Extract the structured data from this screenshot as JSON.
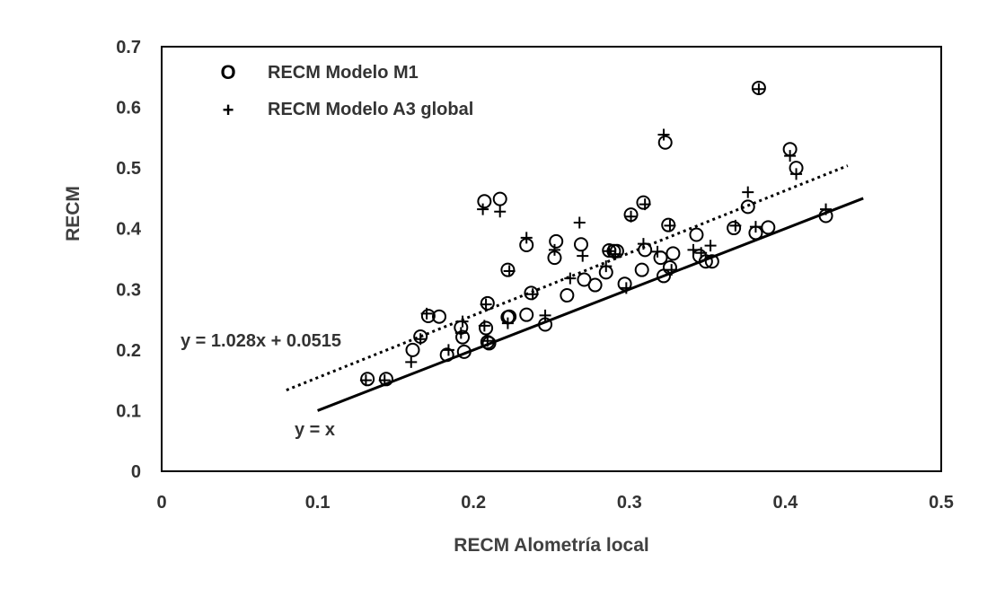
{
  "chart_data": {
    "type": "scatter",
    "title": "",
    "xlabel": "RECM Alometría local",
    "ylabel": "RECM",
    "xlim": [
      0,
      0.5
    ],
    "ylim": [
      0,
      0.7
    ],
    "x_ticks": [
      0,
      0.1,
      0.2,
      0.3,
      0.4,
      0.5
    ],
    "y_ticks": [
      0,
      0.1,
      0.2,
      0.3,
      0.4,
      0.5,
      0.6,
      0.7
    ],
    "x_tick_labels": [
      "0",
      "0.1",
      "0.2",
      "0.3",
      "0.4",
      "0.5"
    ],
    "y_tick_labels": [
      "0",
      "0.1",
      "0.2",
      "0.3",
      "0.4",
      "0.5",
      "0.6",
      "0.7"
    ],
    "grid": false,
    "legend_position": "top-left",
    "series": [
      {
        "name": "RECM Modelo M1",
        "marker": "circle",
        "marker_symbol": "O",
        "x": [
          0.132,
          0.144,
          0.161,
          0.166,
          0.171,
          0.178,
          0.183,
          0.192,
          0.193,
          0.194,
          0.207,
          0.208,
          0.209,
          0.209,
          0.21,
          0.217,
          0.222,
          0.222,
          0.223,
          0.234,
          0.234,
          0.237,
          0.246,
          0.252,
          0.253,
          0.26,
          0.269,
          0.271,
          0.278,
          0.285,
          0.287,
          0.29,
          0.292,
          0.297,
          0.301,
          0.308,
          0.309,
          0.31,
          0.32,
          0.322,
          0.323,
          0.325,
          0.326,
          0.328,
          0.343,
          0.345,
          0.349,
          0.353,
          0.367,
          0.376,
          0.381,
          0.383,
          0.389,
          0.403,
          0.407,
          0.426
        ],
        "y": [
          0.152,
          0.152,
          0.2,
          0.222,
          0.256,
          0.255,
          0.192,
          0.237,
          0.221,
          0.197,
          0.445,
          0.236,
          0.277,
          0.213,
          0.211,
          0.449,
          0.254,
          0.332,
          0.255,
          0.373,
          0.258,
          0.294,
          0.242,
          0.352,
          0.379,
          0.29,
          0.374,
          0.316,
          0.307,
          0.328,
          0.364,
          0.363,
          0.363,
          0.309,
          0.423,
          0.332,
          0.443,
          0.365,
          0.352,
          0.322,
          0.542,
          0.406,
          0.336,
          0.359,
          0.39,
          0.355,
          0.346,
          0.346,
          0.401,
          0.436,
          0.393,
          0.632,
          0.402,
          0.531,
          0.5,
          0.421
        ]
      },
      {
        "name": "RECM Modelo A3 global",
        "marker": "plus",
        "marker_symbol": "+",
        "x": [
          0.131,
          0.143,
          0.16,
          0.166,
          0.17,
          0.184,
          0.193,
          0.192,
          0.206,
          0.207,
          0.208,
          0.209,
          0.217,
          0.222,
          0.223,
          0.234,
          0.238,
          0.246,
          0.252,
          0.262,
          0.268,
          0.27,
          0.285,
          0.287,
          0.291,
          0.298,
          0.301,
          0.309,
          0.31,
          0.318,
          0.322,
          0.326,
          0.327,
          0.341,
          0.346,
          0.352,
          0.368,
          0.376,
          0.381,
          0.383,
          0.403,
          0.407,
          0.426
        ],
        "y": [
          0.15,
          0.15,
          0.18,
          0.218,
          0.26,
          0.2,
          0.247,
          0.228,
          0.432,
          0.24,
          0.275,
          0.215,
          0.428,
          0.244,
          0.33,
          0.385,
          0.292,
          0.257,
          0.365,
          0.318,
          0.41,
          0.355,
          0.338,
          0.363,
          0.358,
          0.302,
          0.42,
          0.375,
          0.44,
          0.362,
          0.555,
          0.405,
          0.332,
          0.365,
          0.36,
          0.372,
          0.405,
          0.46,
          0.403,
          0.63,
          0.52,
          0.49,
          0.432
        ]
      }
    ],
    "lines": [
      {
        "name": "regression",
        "style": "dotted",
        "slope": 1.028,
        "intercept": 0.0515,
        "x_range": [
          0.08,
          0.44
        ],
        "label": "y = 1.028x + 0.0515"
      },
      {
        "name": "identity",
        "style": "solid",
        "slope": 1,
        "intercept": 0,
        "x_range": [
          0.1,
          0.45
        ],
        "label": "y = x"
      }
    ]
  }
}
